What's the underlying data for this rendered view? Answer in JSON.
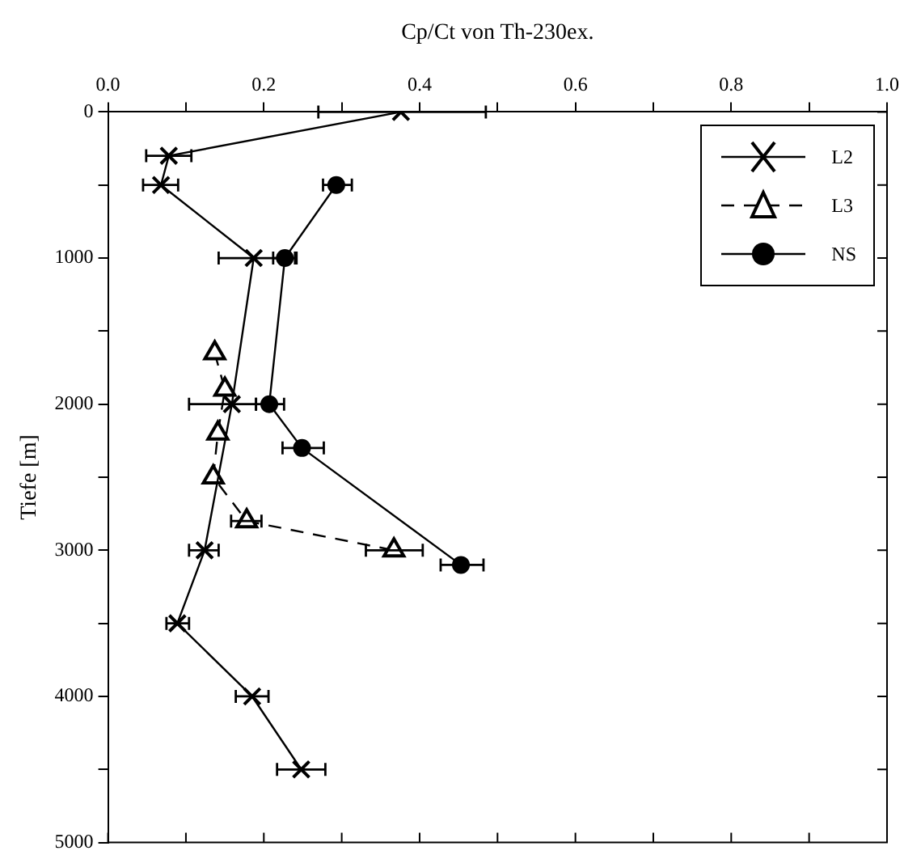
{
  "chart_data": {
    "type": "line",
    "xlabel": "Cp/Ct von Th-230ex.",
    "ylabel": "Tiefe [m]",
    "xlim": [
      0,
      1
    ],
    "xticks": [
      {
        "value": 0,
        "label": "0.0"
      },
      {
        "value": 0.1,
        "label": null
      },
      {
        "value": 0.2,
        "label": "0.2"
      },
      {
        "value": 0.3,
        "label": null
      },
      {
        "value": 0.4,
        "label": "0.4"
      },
      {
        "value": 0.5,
        "label": null
      },
      {
        "value": 0.6,
        "label": "0.6"
      },
      {
        "value": 0.7,
        "label": null
      },
      {
        "value": 0.8,
        "label": "0.8"
      },
      {
        "value": 0.9,
        "label": null
      },
      {
        "value": 1,
        "label": "1.0"
      }
    ],
    "ylim": [
      5000,
      0
    ],
    "yticks": [
      0,
      {
        "value": 500,
        "label": null
      },
      1000,
      {
        "value": 1500,
        "label": null
      },
      2000,
      {
        "value": 2500,
        "label": null
      },
      3000,
      {
        "value": 3500,
        "label": null
      },
      4000,
      {
        "value": 4500,
        "label": null
      },
      5000
    ],
    "grid": false,
    "legend": "top right",
    "series": [
      {
        "name": "L2",
        "color": "#000000",
        "marker": "cross",
        "line_style": "solid",
        "x": [
          0.376,
          0.078,
          0.068,
          0.187,
          0.159,
          0.124,
          0.089,
          0.185,
          0.248
        ],
        "values": [
          0,
          300,
          500,
          1000,
          2000,
          3000,
          3500,
          4000,
          4500
        ],
        "xerrors": [
          [
            0.27,
            0.485
          ],
          [
            0.049,
            0.107
          ],
          [
            0.045,
            0.09
          ],
          [
            0.142,
            0.24
          ],
          [
            0.104,
            0.19
          ],
          [
            0.104,
            0.142
          ],
          [
            0.075,
            0.104
          ],
          [
            0.164,
            0.206
          ],
          [
            0.217,
            0.279
          ]
        ]
      },
      {
        "name": "L3",
        "color": "#000000",
        "marker": "triangle",
        "line_style": "dashed",
        "x": [
          0.137,
          0.15,
          0.141,
          0.135,
          0.178,
          0.367
        ],
        "values": [
          1650,
          1900,
          2200,
          2500,
          2800,
          3000
        ],
        "xerrors": [
          null,
          null,
          null,
          null,
          [
            0.158,
            0.197
          ],
          [
            0.331,
            0.404
          ]
        ]
      },
      {
        "name": "NS",
        "color": "#000000",
        "marker": "circle",
        "line_style": "solid",
        "x": [
          0.293,
          0.227,
          0.207,
          0.249,
          0.453
        ],
        "values": [
          500,
          1000,
          2000,
          2300,
          3100
        ],
        "xerrors": [
          [
            0.276,
            0.313
          ],
          [
            0.212,
            0.242
          ],
          [
            0.19,
            0.226
          ],
          [
            0.224,
            0.277
          ],
          [
            0.427,
            0.482
          ]
        ]
      }
    ]
  }
}
